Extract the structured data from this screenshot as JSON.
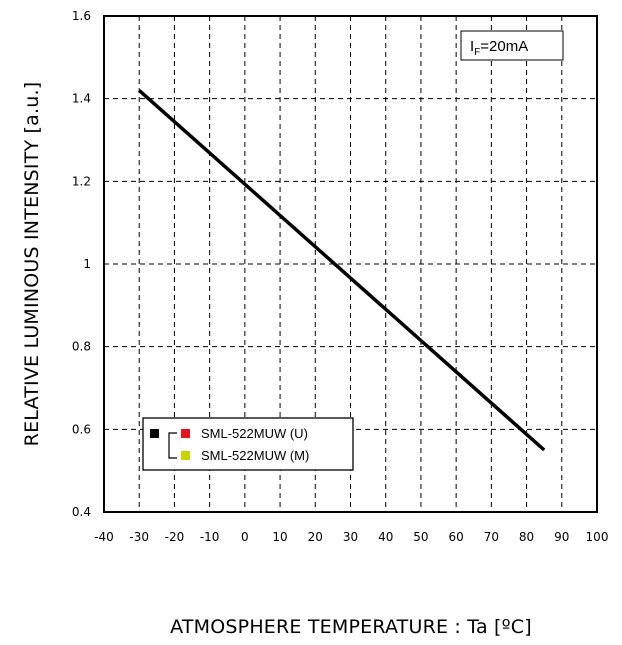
{
  "chart_data": {
    "type": "line",
    "xlabel": "ATMOSPHERE TEMPERATURE : Ta [ºC]",
    "ylabel": "RELATIVE LUMINOUS INTENSITY [a.u.]",
    "xlim": [
      -40,
      100
    ],
    "ylim": [
      0.4,
      1.6
    ],
    "x_ticks": [
      "-40",
      "-30",
      "-20",
      "-10",
      "0",
      "10",
      "20",
      "30",
      "40",
      "50",
      "60",
      "70",
      "80",
      "90",
      "100"
    ],
    "y_ticks": [
      "0.4",
      "0.6",
      "0.8",
      "1",
      "1.2",
      "1.4",
      "1.6"
    ],
    "grid": true,
    "annotation": {
      "main": "I",
      "sub": "F",
      "rest": "=20mA"
    },
    "legend": {
      "placement": "bottom-left",
      "entries": [
        {
          "label": "SML-522MUW (U)",
          "color": "#e8141c"
        },
        {
          "label": "SML-522MUW (M)",
          "color": "#c8d400"
        }
      ],
      "group_color": "#000000"
    },
    "series": [
      {
        "color": "#000000",
        "x": [
          -30,
          85
        ],
        "y": [
          1.42,
          0.55
        ]
      }
    ]
  }
}
